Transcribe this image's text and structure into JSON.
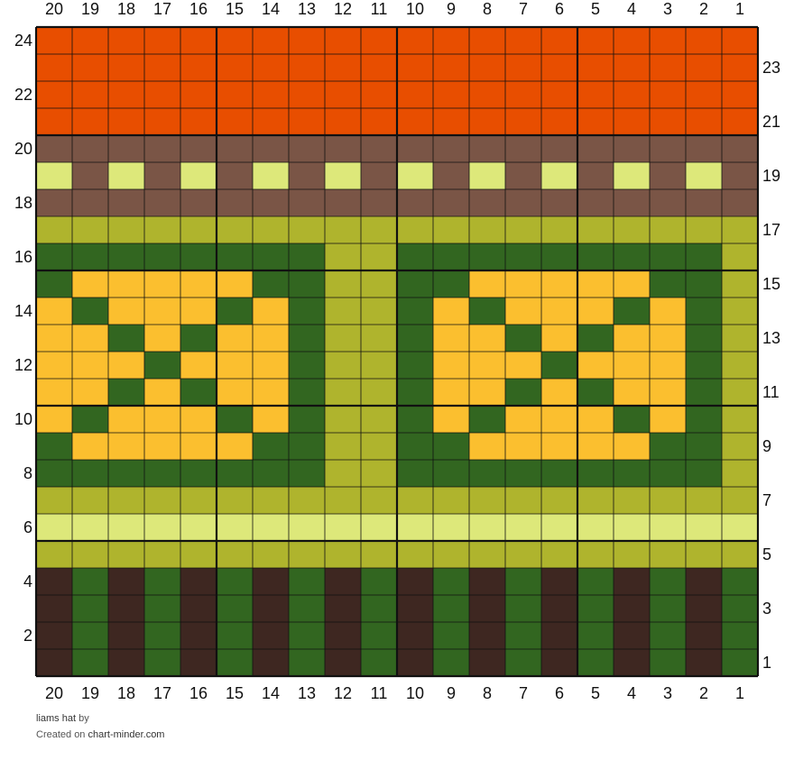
{
  "chart_data": {
    "type": "knitting-chart",
    "stitches": 20,
    "rows": 24,
    "column_labels": [
      "20",
      "19",
      "18",
      "17",
      "16",
      "15",
      "14",
      "13",
      "12",
      "11",
      "10",
      "9",
      "8",
      "7",
      "6",
      "5",
      "4",
      "3",
      "2",
      "1"
    ],
    "row_labels_left": [
      "24",
      "22",
      "20",
      "18",
      "16",
      "14",
      "12",
      "10",
      "8",
      "6",
      "4",
      "2"
    ],
    "row_labels_right": [
      "23",
      "21",
      "19",
      "17",
      "15",
      "13",
      "11",
      "9",
      "7",
      "5",
      "3",
      "1"
    ],
    "palette": {
      "O": "#e84e00",
      "B": "#7a5546",
      "L": "#dde87a",
      "A": "#afb42d",
      "G": "#326620",
      "Y": "#fbbf2f",
      "D": "#3e2721"
    },
    "grid_rows_top_to_bottom": [
      "OOOOOOOOOOOOOOOOOOOO",
      "OOOOOOOOOOOOOOOOOOOO",
      "OOOOOOOOOOOOOOOOOOOO",
      "OOOOOOOOOOOOOOOOOOOO",
      "BBBBBBBBBBBBBBBBBBBB",
      "LBLBLBLBLBLBLBLBLBLB",
      "BBBBBBBBBBBBBBBBBBBB",
      "AAAAAAAAAAAAAAAAAAAA",
      "GGGGGGGGAAGGGGGGGGGA",
      "GYYYYYGGAAGGYYYYYGGA",
      "YGYYYGYGAAGYGYYYGYGA",
      "YYGYGYYGAAGYYGYGYYGA",
      "YYYGYYYGAAGYYYGYYYGA",
      "YYGYGYYGAAGYYGYGYYGA",
      "YGYYYGYGAAGYGYYYGYGA",
      "GYYYYYGGAAGGYYYYYGGA",
      "GGGGGGGGAAGGGGGGGGGA",
      "AAAAAAAAAAAAAAAAAAAA",
      "LLLLLLLLLLLLLLLLLLLL",
      "AAAAAAAAAAAAAAAAAAAA",
      "DGDGDGDGDGDGDGDGDGDG",
      "DGDGDGDGDGDGDGDGDGDG",
      "DGDGDGDGDGDGDGDGDGDG",
      "DGDGDGDGDGDGDGDGDGDG"
    ],
    "repeat_every": 5
  },
  "footer": {
    "title": "liams hat",
    "by": "by",
    "created_on": "Created on",
    "site": "chart-minder.com"
  }
}
